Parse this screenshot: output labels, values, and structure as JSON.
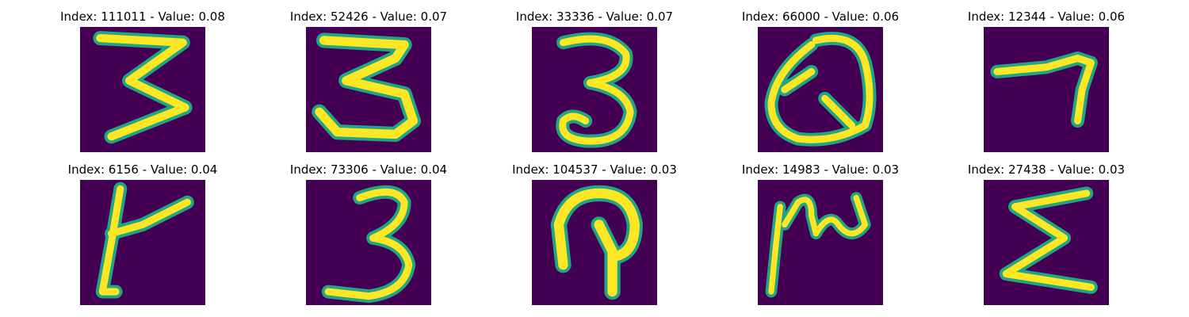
{
  "figure": {
    "panels": [
      {
        "title": "Index: 111011 - Value: 0.08",
        "index": 111011,
        "value": 0.08,
        "glyph": "3"
      },
      {
        "title": "Index: 52426 - Value: 0.07",
        "index": 52426,
        "value": 0.07,
        "glyph": "3"
      },
      {
        "title": "Index: 33336 - Value: 0.07",
        "index": 33336,
        "value": 0.07,
        "glyph": "3"
      },
      {
        "title": "Index: 66000 - Value: 0.06",
        "index": 66000,
        "value": 0.06,
        "glyph": "Q"
      },
      {
        "title": "Index: 12344 - Value: 0.06",
        "index": 12344,
        "value": 0.06,
        "glyph": "7"
      },
      {
        "title": "Index: 6156 - Value: 0.04",
        "index": 6156,
        "value": 0.04,
        "glyph": "t"
      },
      {
        "title": "Index: 73306 - Value: 0.04",
        "index": 73306,
        "value": 0.04,
        "glyph": "3"
      },
      {
        "title": "Index: 104537 - Value: 0.03",
        "index": 104537,
        "value": 0.03,
        "glyph": "P"
      },
      {
        "title": "Index: 14983 - Value: 0.03",
        "index": 14983,
        "value": 0.03,
        "glyph": "m"
      },
      {
        "title": "Index: 27438 - Value: 0.03",
        "index": 27438,
        "value": 0.03,
        "glyph": "E"
      }
    ],
    "colors": {
      "background": "#440154",
      "mid": "#21a585",
      "stroke": "#fde725"
    }
  }
}
